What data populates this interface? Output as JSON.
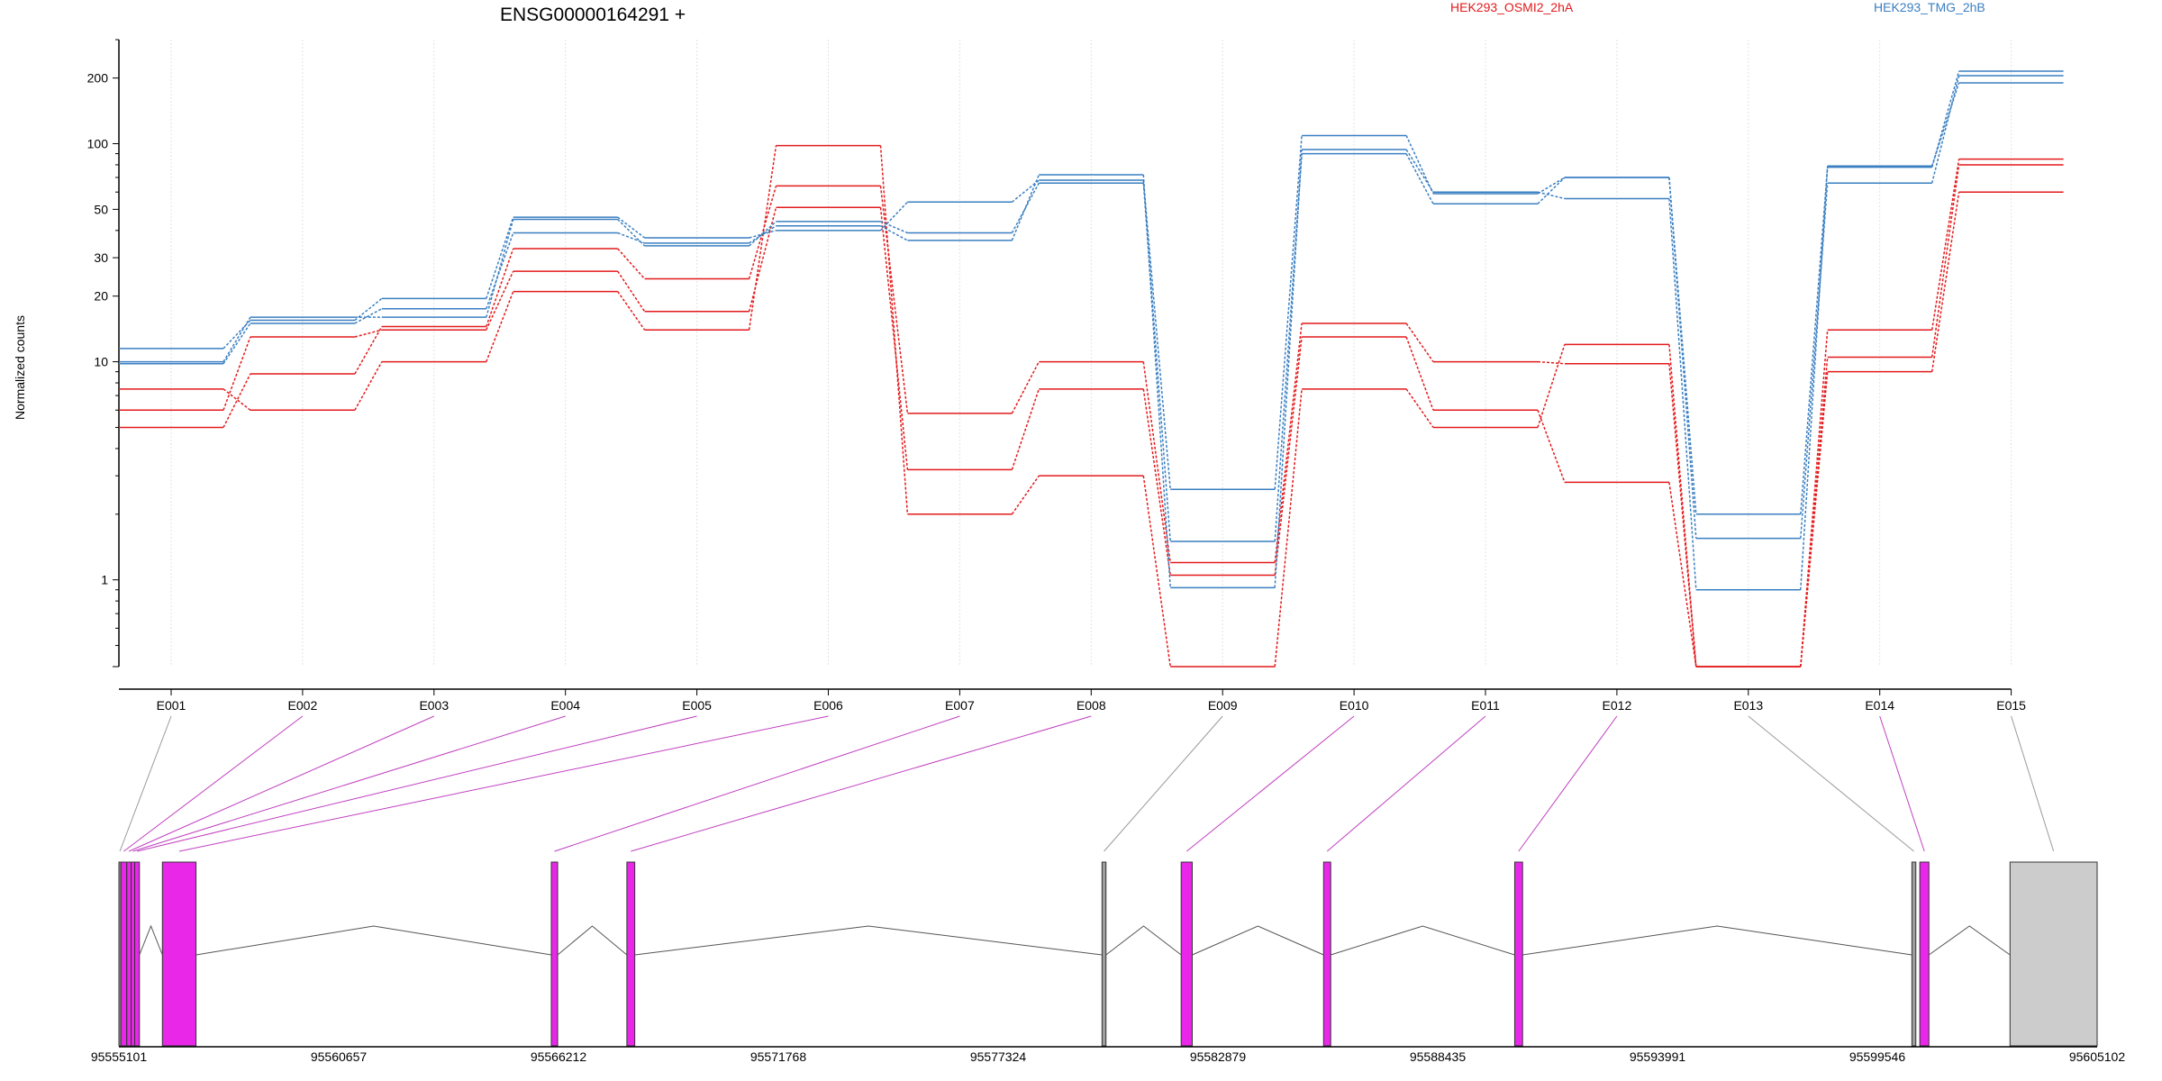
{
  "chart_data": {
    "type": "line",
    "title": "ENSG00000164291 +",
    "ylabel": "Normalized counts",
    "yscale": "log",
    "ylim": [
      0.4,
      300
    ],
    "yticks": [
      1,
      10,
      20,
      30,
      50,
      100,
      200
    ],
    "ytick_labels": [
      "1",
      "10",
      "20",
      "30",
      "50",
      "100",
      "200"
    ],
    "categories": [
      "E001",
      "E002",
      "E003",
      "E004",
      "E005",
      "E006",
      "E007",
      "E008",
      "E009",
      "E010",
      "E011",
      "E012",
      "E013",
      "E014",
      "E015"
    ],
    "legend": [
      {
        "name": "HEK293_OSMI2_2hA",
        "color": "#e31a1c"
      },
      {
        "name": "HEK293_TMG_2hB",
        "color": "#3a7fc1"
      }
    ],
    "series": [
      {
        "group": "HEK293_OSMI2_2hA",
        "color": "#e31a1c",
        "values": [
          7.5,
          6.0,
          10,
          21,
          14,
          98,
          2.0,
          3.0,
          0.4,
          7.5,
          5.0,
          12,
          0.4,
          9.0,
          60
        ]
      },
      {
        "group": "HEK293_OSMI2_2hA",
        "color": "#e31a1c",
        "values": [
          5.0,
          8.8,
          14.5,
          33,
          24,
          64,
          5.8,
          10,
          1.2,
          15,
          10,
          9.8,
          0.4,
          14,
          85
        ]
      },
      {
        "group": "HEK293_OSMI2_2hA",
        "color": "#e31a1c",
        "values": [
          6.0,
          13,
          14,
          26,
          17,
          51,
          3.2,
          7.5,
          1.05,
          13,
          6.0,
          2.8,
          0.4,
          10.5,
          80
        ]
      },
      {
        "group": "HEK293_TMG_2hB",
        "color": "#3a7fc1",
        "values": [
          11.5,
          15.5,
          19.5,
          46,
          37,
          40,
          54,
          68,
          2.6,
          109,
          59,
          70,
          2.0,
          78,
          215
        ]
      },
      {
        "group": "HEK293_TMG_2hB",
        "color": "#3a7fc1",
        "values": [
          10,
          16,
          16,
          45,
          34,
          44,
          39,
          66,
          1.5,
          90,
          53,
          70,
          1.55,
          66,
          205
        ]
      },
      {
        "group": "HEK293_TMG_2hB",
        "color": "#3a7fc1",
        "values": [
          9.8,
          15,
          17.5,
          39,
          35,
          42,
          36,
          72,
          0.92,
          94,
          60,
          56,
          0.9,
          79,
          190
        ]
      }
    ],
    "gene_model": {
      "coordinates": [
        95555101,
        95560657,
        95566212,
        95571768,
        95577324,
        95582879,
        95588435,
        95593991,
        95599546,
        95605102
      ],
      "exons": [
        {
          "id": "E001",
          "start": 95555101,
          "end": 95555150,
          "color": "#9e9e9e"
        },
        {
          "id": "E002",
          "start": 95555150,
          "end": 95555300,
          "color": "#e827e8"
        },
        {
          "id": "E003",
          "start": 95555300,
          "end": 95555410,
          "color": "#e827e8"
        },
        {
          "id": "E004",
          "start": 95555410,
          "end": 95555500,
          "color": "#e827e8"
        },
        {
          "id": "E005",
          "start": 95555500,
          "end": 95555620,
          "color": "#e827e8"
        },
        {
          "id": "E006",
          "start": 95556200,
          "end": 95557050,
          "color": "#e827e8"
        },
        {
          "id": "E007",
          "start": 95566030,
          "end": 95566190,
          "color": "#e827e8"
        },
        {
          "id": "E008",
          "start": 95567940,
          "end": 95568140,
          "color": "#e827e8"
        },
        {
          "id": "E009",
          "start": 95579950,
          "end": 95580050,
          "color": "#9e9e9e"
        },
        {
          "id": "E010",
          "start": 95581950,
          "end": 95582230,
          "color": "#e827e8"
        },
        {
          "id": "E011",
          "start": 95585550,
          "end": 95585730,
          "color": "#e827e8"
        },
        {
          "id": "E012",
          "start": 95590380,
          "end": 95590580,
          "color": "#e827e8"
        },
        {
          "id": "E013",
          "start": 95600420,
          "end": 95600520,
          "color": "#9e9e9e"
        },
        {
          "id": "E014",
          "start": 95600620,
          "end": 95600850,
          "color": "#e827e8"
        },
        {
          "id": "E015",
          "start": 95602900,
          "end": 95605102,
          "color": "#cccccc"
        }
      ]
    }
  }
}
